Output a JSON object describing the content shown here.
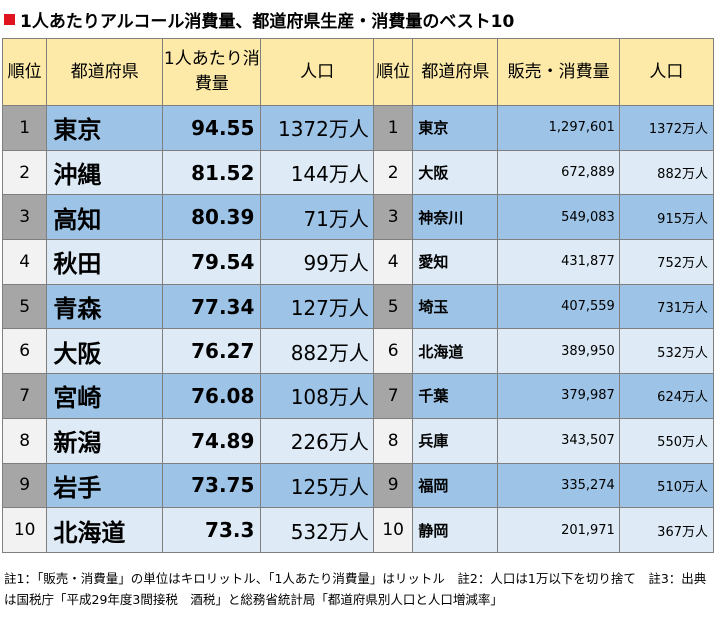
{
  "title": "1人あたりアルコール消費量、都道府県生産・消費量のベスト10",
  "headers": {
    "rank_left": "順位",
    "pref_left": "都道府県",
    "consumption": "1人あたり消費量",
    "population_left": "人口",
    "rank_right": "順位",
    "pref_right": "都道府県",
    "sales": "販売・消費量",
    "population_right": "人口"
  },
  "rows": [
    {
      "rank": "1",
      "pref": "東京",
      "consumption": "94.55",
      "population": "1372万人",
      "rank2": "1",
      "pref2": "東京",
      "sales": "1,297,601",
      "population2": "1372万人"
    },
    {
      "rank": "2",
      "pref": "沖縄",
      "consumption": "81.52",
      "population": "144万人",
      "rank2": "2",
      "pref2": "大阪",
      "sales": "672,889",
      "population2": "882万人"
    },
    {
      "rank": "3",
      "pref": "高知",
      "consumption": "80.39",
      "population": "71万人",
      "rank2": "3",
      "pref2": "神奈川",
      "sales": "549,083",
      "population2": "915万人"
    },
    {
      "rank": "4",
      "pref": "秋田",
      "consumption": "79.54",
      "population": "99万人",
      "rank2": "4",
      "pref2": "愛知",
      "sales": "431,877",
      "population2": "752万人"
    },
    {
      "rank": "5",
      "pref": "青森",
      "consumption": "77.34",
      "population": "127万人",
      "rank2": "5",
      "pref2": "埼玉",
      "sales": "407,559",
      "population2": "731万人"
    },
    {
      "rank": "6",
      "pref": "大阪",
      "consumption": "76.27",
      "population": "882万人",
      "rank2": "6",
      "pref2": "北海道",
      "sales": "389,950",
      "population2": "532万人"
    },
    {
      "rank": "7",
      "pref": "宮崎",
      "consumption": "76.08",
      "population": "108万人",
      "rank2": "7",
      "pref2": "千葉",
      "sales": "379,987",
      "population2": "624万人"
    },
    {
      "rank": "8",
      "pref": "新潟",
      "consumption": "74.89",
      "population": "226万人",
      "rank2": "8",
      "pref2": "兵庫",
      "sales": "343,507",
      "population2": "550万人"
    },
    {
      "rank": "9",
      "pref": "岩手",
      "consumption": "73.75",
      "population": "125万人",
      "rank2": "9",
      "pref2": "福岡",
      "sales": "335,274",
      "population2": "510万人"
    },
    {
      "rank": "10",
      "pref": "北海道",
      "consumption": "73.3",
      "population": "532万人",
      "rank2": "10",
      "pref2": "静岡",
      "sales": "201,971",
      "population2": "367万人"
    }
  ],
  "notes": "註1：「販売・消費量」の単位はキロリットル、「1人あたり消費量」はリットル　註2：人口は1万以下を切り捨て　註3：出典は国税庁「平成29年度3間接税　酒税」と総務省統計局「都道府県別人口と人口増減率」",
  "colors": {
    "title_mark": "#e0141e",
    "header_bg": "#fdeaa8",
    "rank_odd": "#a6a6a6",
    "rank_even": "#f2f2f2",
    "cell_odd": "#9dc3e6",
    "cell_even": "#deebf7"
  }
}
